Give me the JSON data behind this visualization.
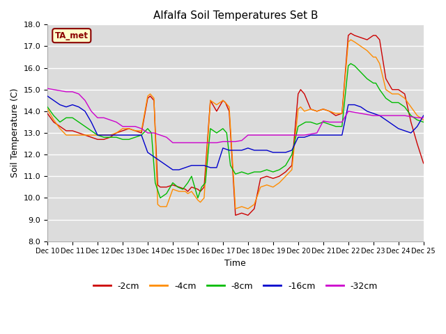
{
  "title": "Alfalfa Soil Temperatures Set B",
  "xlabel": "Time",
  "ylabel": "Soil Temperature (C)",
  "ylim": [
    8.0,
    18.0
  ],
  "yticks": [
    8.0,
    9.0,
    10.0,
    11.0,
    12.0,
    13.0,
    14.0,
    15.0,
    16.0,
    17.0,
    18.0
  ],
  "xtick_labels": [
    "Dec 10",
    "Dec 11",
    "Dec 12",
    "Dec 13",
    "Dec 14",
    "Dec 15",
    "Dec 16",
    "Dec 17",
    "Dec 18",
    "Dec 19",
    "Dec 20",
    "Dec 21",
    "Dec 22",
    "Dec 23",
    "Dec 24",
    "Dec 25"
  ],
  "background_color": "#dcdcdc",
  "annotation_text": "TA_met",
  "annotation_color": "#8b0000",
  "annotation_bg": "#ffffcc",
  "series": {
    "-2cm": {
      "color": "#cc0000",
      "x": [
        0.0,
        0.25,
        0.5,
        0.75,
        1.0,
        1.25,
        1.5,
        1.75,
        2.0,
        2.25,
        2.5,
        2.75,
        3.0,
        3.25,
        3.5,
        3.75,
        4.0,
        4.1,
        4.25,
        4.4,
        4.5,
        4.75,
        5.0,
        5.25,
        5.5,
        5.6,
        5.75,
        6.0,
        6.1,
        6.25,
        6.5,
        6.75,
        7.0,
        7.1,
        7.25,
        7.5,
        7.75,
        8.0,
        8.25,
        8.5,
        8.75,
        9.0,
        9.25,
        9.5,
        9.75,
        10.0,
        10.1,
        10.25,
        10.5,
        10.75,
        11.0,
        11.25,
        11.5,
        11.75,
        12.0,
        12.1,
        12.25,
        12.5,
        12.75,
        13.0,
        13.1,
        13.25,
        13.5,
        13.75,
        14.0,
        14.25,
        14.5,
        14.75,
        15.0
      ],
      "y": [
        13.9,
        13.5,
        13.3,
        13.1,
        13.1,
        13.0,
        12.9,
        12.8,
        12.7,
        12.7,
        12.8,
        13.0,
        13.1,
        13.2,
        13.1,
        13.0,
        14.6,
        14.7,
        14.5,
        10.6,
        10.5,
        10.5,
        10.6,
        10.5,
        10.4,
        10.3,
        10.5,
        10.4,
        10.3,
        10.5,
        14.5,
        14.0,
        14.5,
        14.4,
        14.0,
        9.2,
        9.3,
        9.2,
        9.5,
        10.9,
        11.0,
        10.9,
        11.0,
        11.2,
        11.5,
        14.8,
        15.0,
        14.8,
        14.1,
        14.0,
        14.1,
        14.0,
        13.8,
        13.9,
        17.5,
        17.6,
        17.5,
        17.4,
        17.3,
        17.5,
        17.5,
        17.3,
        15.5,
        15.0,
        15.0,
        14.8,
        13.5,
        12.5,
        11.6
      ]
    },
    "-4cm": {
      "color": "#ff8c00",
      "x": [
        0.0,
        0.25,
        0.5,
        0.75,
        1.0,
        1.25,
        1.5,
        1.75,
        2.0,
        2.25,
        2.5,
        2.75,
        3.0,
        3.25,
        3.5,
        3.75,
        4.0,
        4.1,
        4.25,
        4.4,
        4.5,
        4.75,
        5.0,
        5.25,
        5.5,
        5.6,
        5.75,
        6.0,
        6.1,
        6.25,
        6.5,
        6.75,
        7.0,
        7.1,
        7.25,
        7.5,
        7.75,
        8.0,
        8.25,
        8.5,
        8.75,
        9.0,
        9.25,
        9.5,
        9.75,
        10.0,
        10.1,
        10.25,
        10.5,
        10.75,
        11.0,
        11.25,
        11.5,
        11.75,
        12.0,
        12.1,
        12.25,
        12.5,
        12.75,
        13.0,
        13.1,
        13.25,
        13.5,
        13.75,
        14.0,
        14.25,
        14.5,
        14.75,
        15.0
      ],
      "y": [
        14.1,
        13.6,
        13.2,
        12.9,
        12.9,
        12.9,
        12.9,
        12.9,
        12.9,
        12.9,
        12.9,
        13.0,
        13.2,
        13.2,
        13.1,
        13.1,
        14.7,
        14.8,
        14.6,
        9.7,
        9.6,
        9.6,
        10.4,
        10.3,
        10.3,
        10.2,
        10.3,
        9.9,
        9.8,
        10.0,
        14.5,
        14.3,
        14.5,
        14.4,
        14.2,
        9.5,
        9.6,
        9.5,
        9.7,
        10.5,
        10.6,
        10.5,
        10.7,
        11.0,
        11.3,
        14.1,
        14.2,
        14.0,
        14.1,
        14.0,
        14.1,
        14.0,
        13.9,
        13.9,
        17.2,
        17.3,
        17.2,
        17.0,
        16.8,
        16.5,
        16.5,
        16.2,
        15.0,
        14.8,
        14.8,
        14.6,
        14.2,
        13.8,
        13.6
      ]
    },
    "-8cm": {
      "color": "#00bb00",
      "x": [
        0.0,
        0.25,
        0.5,
        0.75,
        1.0,
        1.25,
        1.5,
        1.75,
        2.0,
        2.25,
        2.5,
        2.75,
        3.0,
        3.25,
        3.5,
        3.75,
        4.0,
        4.15,
        4.3,
        4.5,
        4.75,
        5.0,
        5.2,
        5.4,
        5.6,
        5.75,
        6.0,
        6.15,
        6.3,
        6.5,
        6.75,
        7.0,
        7.15,
        7.3,
        7.5,
        7.75,
        8.0,
        8.25,
        8.5,
        8.75,
        9.0,
        9.25,
        9.5,
        9.75,
        10.0,
        10.15,
        10.3,
        10.5,
        10.75,
        11.0,
        11.25,
        11.5,
        11.75,
        12.0,
        12.1,
        12.25,
        12.5,
        12.75,
        13.0,
        13.1,
        13.25,
        13.5,
        13.75,
        14.0,
        14.25,
        14.5,
        14.75,
        15.0
      ],
      "y": [
        14.2,
        13.8,
        13.5,
        13.7,
        13.7,
        13.5,
        13.3,
        13.1,
        12.9,
        12.8,
        12.8,
        12.8,
        12.7,
        12.7,
        12.8,
        12.9,
        13.2,
        13.0,
        10.7,
        10.0,
        10.2,
        10.7,
        10.5,
        10.4,
        10.7,
        11.0,
        10.0,
        10.5,
        10.7,
        13.2,
        13.0,
        13.2,
        13.0,
        11.5,
        11.1,
        11.2,
        11.1,
        11.2,
        11.2,
        11.3,
        11.2,
        11.3,
        11.5,
        12.0,
        13.3,
        13.4,
        13.5,
        13.5,
        13.4,
        13.5,
        13.4,
        13.3,
        13.3,
        16.1,
        16.2,
        16.1,
        15.8,
        15.5,
        15.3,
        15.3,
        15.0,
        14.6,
        14.4,
        14.4,
        14.2,
        13.8,
        13.6,
        13.5
      ]
    },
    "-16cm": {
      "color": "#0000cc",
      "x": [
        0.0,
        0.25,
        0.5,
        0.75,
        1.0,
        1.25,
        1.5,
        1.75,
        2.0,
        2.25,
        2.5,
        2.75,
        3.0,
        3.25,
        3.5,
        3.75,
        4.0,
        4.25,
        4.5,
        4.75,
        5.0,
        5.25,
        5.5,
        5.75,
        6.0,
        6.25,
        6.5,
        6.75,
        7.0,
        7.25,
        7.5,
        7.75,
        8.0,
        8.25,
        8.5,
        8.75,
        9.0,
        9.25,
        9.5,
        9.75,
        10.0,
        10.25,
        10.5,
        10.75,
        11.0,
        11.25,
        11.5,
        11.75,
        12.0,
        12.25,
        12.5,
        12.75,
        13.0,
        13.25,
        13.5,
        13.75,
        14.0,
        14.25,
        14.5,
        14.75,
        15.0
      ],
      "y": [
        14.7,
        14.5,
        14.3,
        14.2,
        14.3,
        14.2,
        14.0,
        13.5,
        12.9,
        12.9,
        12.9,
        12.9,
        12.9,
        12.9,
        12.9,
        12.9,
        12.1,
        11.9,
        11.7,
        11.5,
        11.3,
        11.3,
        11.4,
        11.5,
        11.5,
        11.5,
        11.4,
        11.4,
        12.3,
        12.2,
        12.2,
        12.2,
        12.3,
        12.2,
        12.2,
        12.2,
        12.1,
        12.1,
        12.1,
        12.2,
        12.8,
        12.8,
        12.9,
        12.9,
        12.9,
        12.9,
        12.9,
        12.9,
        14.3,
        14.3,
        14.2,
        14.0,
        13.9,
        13.8,
        13.6,
        13.4,
        13.2,
        13.1,
        13.0,
        13.3,
        13.8
      ]
    },
    "-32cm": {
      "color": "#cc00cc",
      "x": [
        0.0,
        0.25,
        0.5,
        0.75,
        1.0,
        1.25,
        1.5,
        1.75,
        2.0,
        2.25,
        2.5,
        2.75,
        3.0,
        3.25,
        3.5,
        3.75,
        4.0,
        4.25,
        4.5,
        4.75,
        5.0,
        5.25,
        5.5,
        5.75,
        6.0,
        6.25,
        6.5,
        6.75,
        7.0,
        7.25,
        7.5,
        7.75,
        8.0,
        8.25,
        8.5,
        8.75,
        9.0,
        9.25,
        9.5,
        9.75,
        10.0,
        10.25,
        10.5,
        10.75,
        11.0,
        11.25,
        11.5,
        11.75,
        12.0,
        12.25,
        12.5,
        12.75,
        13.0,
        13.25,
        13.5,
        13.75,
        14.0,
        14.25,
        14.5,
        14.75,
        15.0
      ],
      "y": [
        15.05,
        15.0,
        14.95,
        14.9,
        14.9,
        14.8,
        14.5,
        14.0,
        13.7,
        13.7,
        13.6,
        13.5,
        13.3,
        13.3,
        13.3,
        13.2,
        13.0,
        13.0,
        12.9,
        12.8,
        12.55,
        12.55,
        12.55,
        12.55,
        12.55,
        12.55,
        12.55,
        12.55,
        12.6,
        12.6,
        12.6,
        12.65,
        12.9,
        12.9,
        12.9,
        12.9,
        12.9,
        12.9,
        12.9,
        12.9,
        12.9,
        12.9,
        12.95,
        13.0,
        13.55,
        13.5,
        13.5,
        13.5,
        14.0,
        13.95,
        13.9,
        13.85,
        13.8,
        13.8,
        13.8,
        13.8,
        13.8,
        13.8,
        13.75,
        13.7,
        13.7
      ]
    }
  },
  "legend_entries": [
    "-2cm",
    "-4cm",
    "-8cm",
    "-16cm",
    "-32cm"
  ],
  "legend_colors": [
    "#cc0000",
    "#ff8c00",
    "#00bb00",
    "#0000cc",
    "#cc00cc"
  ]
}
